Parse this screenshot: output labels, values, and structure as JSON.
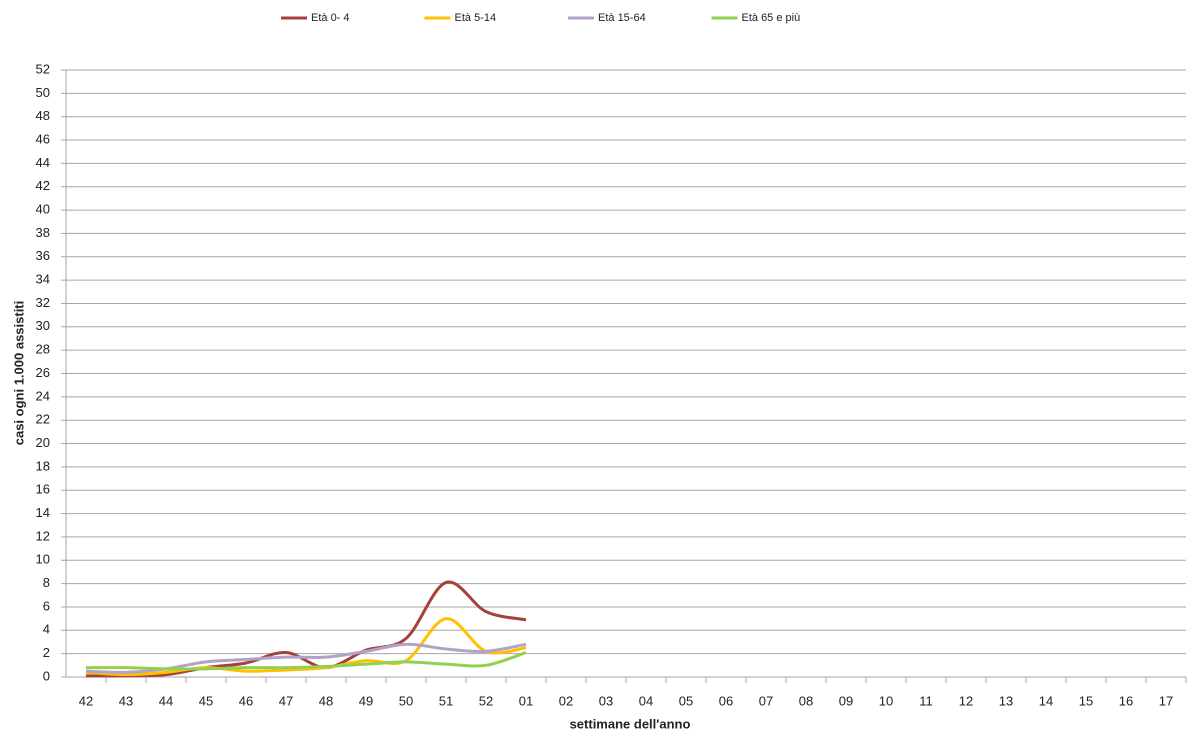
{
  "chart_data": {
    "type": "line",
    "x_label": "settimane dell'anno",
    "y_label": "casi ogni 1.000 assistiti",
    "categories": [
      "42",
      "43",
      "44",
      "45",
      "46",
      "47",
      "48",
      "49",
      "50",
      "51",
      "52",
      "01",
      "02",
      "03",
      "04",
      "05",
      "06",
      "07",
      "08",
      "09",
      "10",
      "11",
      "12",
      "13",
      "14",
      "15",
      "16",
      "17"
    ],
    "series": [
      {
        "name": "Età  0- 4",
        "color": "#a5403c",
        "values": [
          0.1,
          0.1,
          0.2,
          0.8,
          1.2,
          2.1,
          0.8,
          2.3,
          3.3,
          8.1,
          5.6,
          4.9,
          null,
          null,
          null,
          null,
          null,
          null,
          null,
          null,
          null,
          null,
          null,
          null,
          null,
          null,
          null,
          null
        ]
      },
      {
        "name": "Età  5-14",
        "color": "#ffc000",
        "values": [
          0.4,
          0.2,
          0.4,
          0.8,
          0.5,
          0.6,
          0.8,
          1.4,
          1.4,
          5.0,
          2.2,
          2.5,
          null,
          null,
          null,
          null,
          null,
          null,
          null,
          null,
          null,
          null,
          null,
          null,
          null,
          null,
          null,
          null
        ]
      },
      {
        "name": "Età 15-64",
        "color": "#b3a2c7",
        "values": [
          0.5,
          0.4,
          0.7,
          1.3,
          1.5,
          1.7,
          1.7,
          2.2,
          2.8,
          2.4,
          2.2,
          2.8,
          null,
          null,
          null,
          null,
          null,
          null,
          null,
          null,
          null,
          null,
          null,
          null,
          null,
          null,
          null,
          null
        ]
      },
      {
        "name": "Età 65 e più",
        "color": "#92d050",
        "values": [
          0.8,
          0.8,
          0.7,
          0.7,
          0.8,
          0.8,
          0.9,
          1.1,
          1.3,
          1.1,
          1.0,
          2.1,
          null,
          null,
          null,
          null,
          null,
          null,
          null,
          null,
          null,
          null,
          null,
          null,
          null,
          null,
          null,
          null
        ]
      }
    ],
    "ylim": [
      0,
      52
    ],
    "yticks": [
      0,
      2,
      4,
      6,
      8,
      10,
      12,
      14,
      16,
      18,
      20,
      22,
      24,
      26,
      28,
      30,
      32,
      34,
      36,
      38,
      40,
      42,
      44,
      46,
      48,
      50,
      52
    ],
    "grid": true,
    "legend": "top"
  }
}
